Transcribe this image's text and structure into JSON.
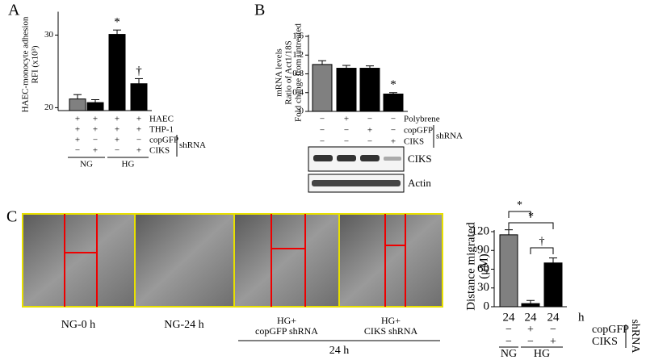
{
  "chart_data": [
    {
      "type": "bar",
      "label": "A",
      "ylabel": [
        "HAEC-monocyte adhesion",
        "RFI (x10³)"
      ],
      "ylim": [
        19.6,
        33
      ],
      "yticks": [
        20,
        30
      ],
      "values": [
        21.2,
        20.7,
        30.1,
        23.3
      ],
      "errors": [
        0.6,
        0.4,
        0.6,
        0.7
      ],
      "colors": [
        "#808080",
        "#000000",
        "#000000",
        "#000000"
      ],
      "markers": [
        null,
        null,
        "*",
        "†"
      ],
      "conditions": {
        "rows": [
          {
            "name": "HAEC",
            "signs": [
              "+",
              "+",
              "+",
              "+"
            ]
          },
          {
            "name": "THP-1",
            "signs": [
              "+",
              "+",
              "+",
              "+"
            ]
          },
          {
            "name": "copGFP",
            "signs": [
              "+",
              "−",
              "+",
              "−"
            ]
          },
          {
            "name": "CIKS",
            "signs": [
              "−",
              "+",
              "−",
              "+"
            ]
          }
        ],
        "bracket": "shRNA",
        "groups": [
          "NG",
          "HG"
        ]
      }
    },
    {
      "type": "bar",
      "label": "B",
      "ylabel": [
        "mRNA levels",
        "Ratio of Act1/18S",
        "Fold change from untreated"
      ],
      "ylim": [
        0,
        1.6
      ],
      "yticks": [
        0,
        0.4,
        0.8,
        1.2,
        1.6
      ],
      "values": [
        1.0,
        0.92,
        0.92,
        0.37
      ],
      "errors": [
        0.08,
        0.06,
        0.05,
        0.03
      ],
      "colors": [
        "#808080",
        "#000000",
        "#000000",
        "#000000"
      ],
      "markers": [
        null,
        null,
        null,
        "*"
      ],
      "conditions": {
        "rows": [
          {
            "name": "Polybrene",
            "signs": [
              "−",
              "+",
              "−",
              "−"
            ]
          },
          {
            "name": "copGFP",
            "signs": [
              "−",
              "−",
              "+",
              "−"
            ]
          },
          {
            "name": "CIKS",
            "signs": [
              "−",
              "−",
              "−",
              "+"
            ]
          }
        ],
        "bracket": "shRNA"
      },
      "blot_bands": [
        "CIKS",
        "Actin"
      ]
    },
    {
      "type": "bar",
      "label": "C",
      "ylabel": [
        "Distance migrated",
        "(μM)"
      ],
      "ylim": [
        0,
        120
      ],
      "yticks": [
        0,
        30,
        60,
        90,
        120
      ],
      "categories": [
        "24",
        "24",
        "24"
      ],
      "x_unit": "h",
      "values": [
        115,
        5,
        70
      ],
      "errors": [
        8,
        5,
        8
      ],
      "colors": [
        "#808080",
        "#000000",
        "#000000"
      ],
      "significance": [
        "*",
        "*",
        "†"
      ],
      "conditions": {
        "rows": [
          {
            "name": "copGFP",
            "signs": [
              "−",
              "+",
              "−"
            ]
          },
          {
            "name": "CIKS",
            "signs": [
              "−",
              "−",
              "+"
            ]
          }
        ],
        "bracket": "shRNA",
        "groups": [
          "NG",
          "HG"
        ]
      },
      "image_captions": [
        [
          "NG-0 h"
        ],
        [
          "NG-24 h"
        ],
        [
          "HG+",
          "copGFP shRNA"
        ],
        [
          "HG+",
          "CIKS shRNA"
        ]
      ],
      "image_span_label": "24 h"
    }
  ]
}
